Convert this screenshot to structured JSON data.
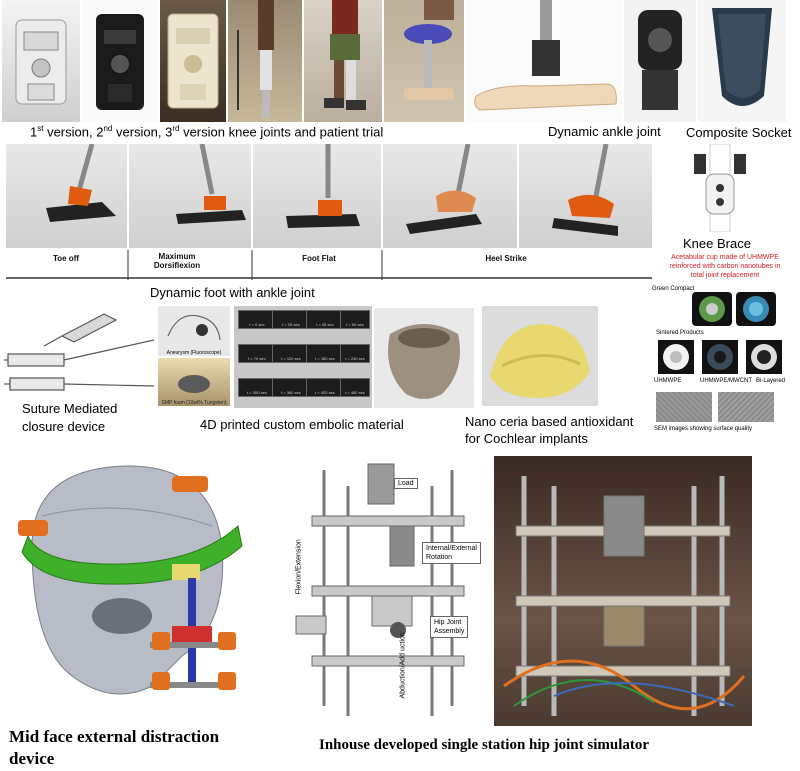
{
  "captions": {
    "knee_versions_pre": "1",
    "knee_versions_sup1": "st",
    "knee_versions_mid1": " version, 2",
    "knee_versions_sup2": "nd",
    "knee_versions_mid2": " version, 3",
    "knee_versions_sup3": "rd",
    "knee_versions_post": " version knee joints and patient trial",
    "dynamic_ankle": "Dynamic ankle joint",
    "composite_socket": "Composite Socket",
    "knee_brace": "Knee Brace",
    "dynamic_foot": "Dynamic foot with ankle joint",
    "suture_line1": "Suture Mediated",
    "suture_line2": "closure device",
    "embolic": "4D printed custom embolic material",
    "nano_line1": "Nano ceria based antioxidant",
    "nano_line2": "for Cochlear implants",
    "mid_face_line1": "Mid face external distraction",
    "mid_face_line2": "device",
    "hip_simulator": "Inhouse developed single station hip joint simulator"
  },
  "gait_phases": [
    "Toe off",
    "Maximum Dorsiflexion",
    "Foot Flat",
    "Heel Strike"
  ],
  "acetabular": {
    "title_line1": "Acetabular cup made of UHMWPE",
    "title_line2": "reinforced with carbon nanotubes in",
    "title_line3": "total joint replacement",
    "green_compact": "Green Compact",
    "sintered": "Sintered Products",
    "labels": [
      "UHMWPE",
      "UHMWPE/MWCNT",
      "Bi-Layered"
    ],
    "sem": "SEM images showing surface quality"
  },
  "embolic_panel": {
    "aneurysm": "Aneurysm (Fluoroscope)",
    "smp": "SMP foam (10wt% Tungsten)",
    "tiles": [
      "t = 0 sec",
      "t = 25 sec",
      "t = 35 sec",
      "t = 50 sec",
      "t = 70 sec",
      "t = 120 sec",
      "t = 180 sec",
      "t = 240 sec",
      "t = 300 sec",
      "t = 360 sec",
      "t = 420 sec",
      "t = 480 sec"
    ]
  },
  "hip_diagram": {
    "load": "Load",
    "rotation_line1": "Internal/External",
    "rotation_line2": "Rotation",
    "flexion": "Flexion/Extension",
    "assembly_line1": "Hip Joint",
    "assembly_line2": "Assembly",
    "abduction": "Abduction/Add uction"
  },
  "colors": {
    "accent_red": "#cc2222",
    "ceria_yellow": "#e8d870",
    "bracket_green": "#3fb02a",
    "bracket_orange": "#e07020"
  }
}
